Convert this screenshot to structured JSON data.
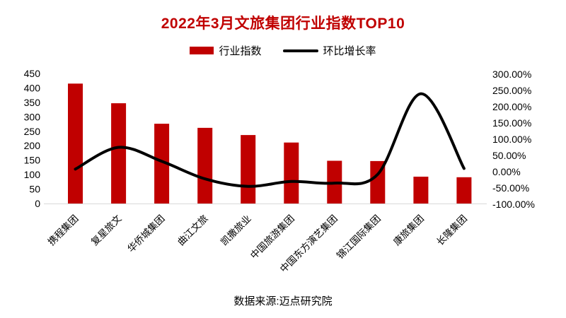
{
  "title": "2022年3月文旅集团行业指数TOP10",
  "legend": {
    "bar_label": "行业指数",
    "line_label": "环比增长率"
  },
  "footer": {
    "source": "数据来源:迈点研究院"
  },
  "colors": {
    "bar": "#c00000",
    "line": "#000000",
    "title": "#c00000",
    "axis_line": "#d9d9d9",
    "text": "#000000"
  },
  "chart_data": {
    "type": "bar",
    "subtype": "combo-bar-line-dual-axis",
    "title": "2022年3月文旅集团行业指数TOP10",
    "grid": false,
    "legend_position": "top",
    "categories": [
      "携程集团",
      "复星旅文",
      "华侨城集团",
      "曲江文旅",
      "凯撒旅业",
      "中国旅游集团",
      "中国东方演艺集团",
      "锦江国际集团",
      "康旅集团",
      "长隆集团"
    ],
    "series": [
      {
        "name": "行业指数",
        "type": "bar",
        "axis": "left",
        "color": "#c00000",
        "values": [
          415,
          347,
          276,
          262,
          237,
          211,
          148,
          147,
          93,
          91
        ]
      },
      {
        "name": "环比增长率",
        "type": "line",
        "axis": "right",
        "color": "#000000",
        "values_percent": [
          8,
          75,
          32,
          -22,
          -45,
          -30,
          -35,
          -8,
          240,
          10
        ]
      }
    ],
    "left_axis": {
      "min": 0,
      "max": 450,
      "step": 50,
      "ticks": [
        450,
        400,
        350,
        300,
        250,
        200,
        150,
        100,
        50,
        0
      ]
    },
    "right_axis": {
      "min": -100,
      "max": 300,
      "step": 50,
      "format": "percent-2dp",
      "ticks": [
        "300.00%",
        "250.00%",
        "200.00%",
        "150.00%",
        "100.00%",
        "50.00%",
        "0.00%",
        "-50.00%",
        "-100.00%"
      ]
    },
    "xlabel": "",
    "ylabel_left": "",
    "ylabel_right": ""
  }
}
